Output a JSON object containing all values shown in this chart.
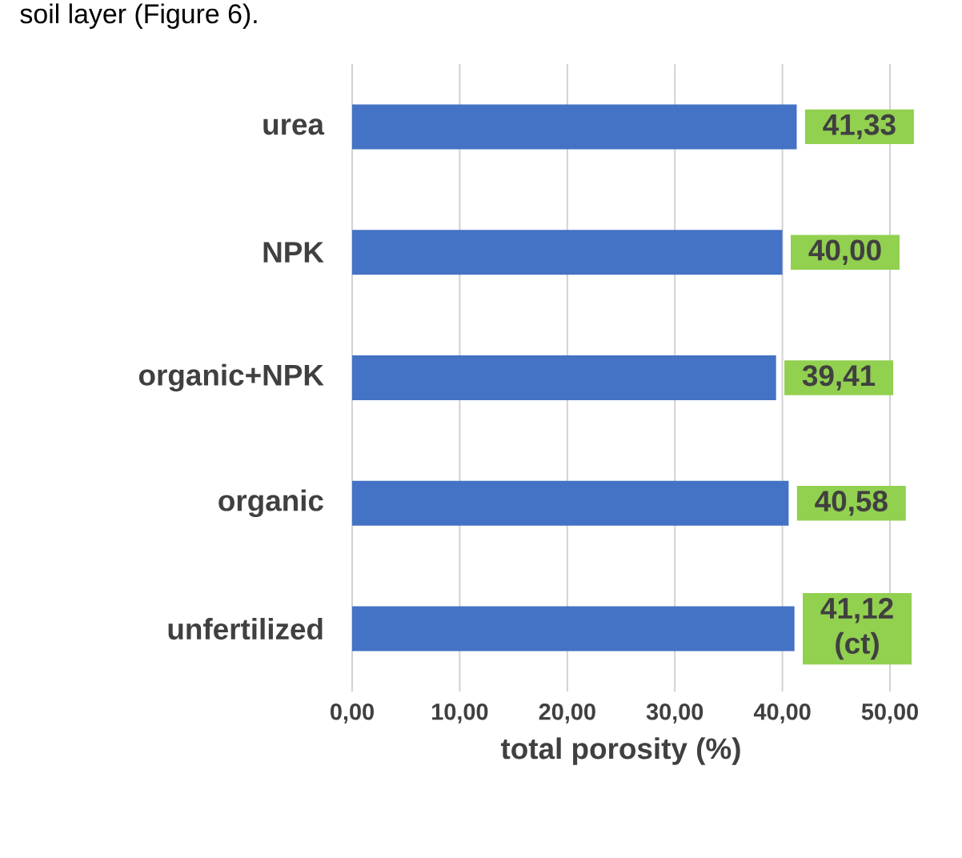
{
  "chart_data": {
    "type": "bar",
    "orientation": "horizontal",
    "xlabel": "total porosity (%)",
    "annotations": [
      "soil layer (Figure 6)."
    ],
    "categories": [
      "urea",
      "NPK",
      "organic+NPK",
      "organic",
      "unfertilized"
    ],
    "values": [
      41.33,
      40.0,
      39.41,
      40.58,
      41.12
    ],
    "value_labels": [
      "41,33",
      "40,00",
      "39,41",
      "40,58",
      "41,12 (ct)"
    ],
    "color": "#4472c4",
    "xlim": [
      0,
      50
    ],
    "xticks": [
      {
        "value": 0,
        "label": "0,00"
      },
      {
        "value": 10,
        "label": "10,00"
      },
      {
        "value": 20,
        "label": "20,00"
      },
      {
        "value": 30,
        "label": "30,00"
      },
      {
        "value": 40,
        "label": "40,00"
      },
      {
        "value": 50,
        "label": "50,00"
      }
    ],
    "grid": "x"
  }
}
